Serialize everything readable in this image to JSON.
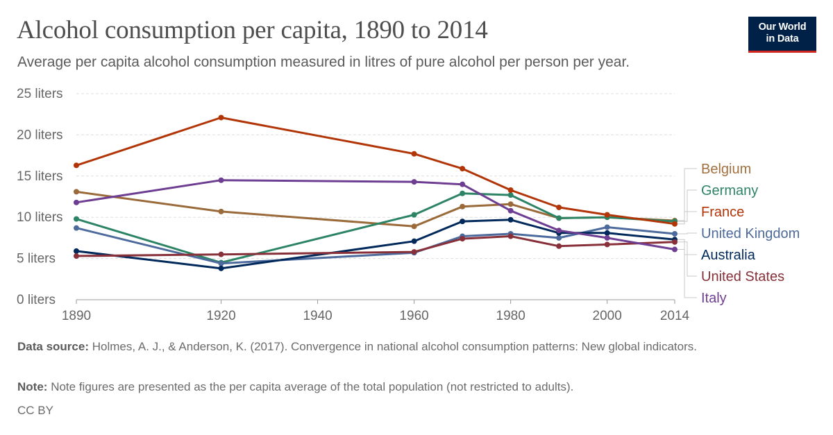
{
  "header": {
    "title": "Alcohol consumption per capita, 1890 to 2014",
    "subtitle": "Average per capita alcohol consumption measured in litres of pure alcohol per person per year.",
    "logo_line1": "Our World",
    "logo_line2": "in Data"
  },
  "footer": {
    "source_label": "Data source:",
    "source_text": "Holmes, A. J., & Anderson, K. (2017). Convergence in national alcohol consumption patterns: New global indicators.",
    "note_label": "Note:",
    "note_text": "Note figures are presented as the per capita average of the total population (not restricted to adults).",
    "license": "CC BY"
  },
  "chart_data": {
    "type": "line",
    "title": "Alcohol consumption per capita, 1890 to 2014",
    "xlabel": "",
    "ylabel": "",
    "xlim": [
      1890,
      2014
    ],
    "ylim": [
      0,
      25
    ],
    "grid": true,
    "legend_placement": "right",
    "x_ticks": [
      1890,
      1920,
      1940,
      1960,
      1980,
      2000,
      2014
    ],
    "y_ticks": [
      0,
      5,
      10,
      15,
      20,
      25
    ],
    "y_tick_labels": [
      "0 liters",
      "5 liters",
      "10 liters",
      "15 liters",
      "20 liters",
      "25 liters"
    ],
    "series": [
      {
        "name": "Belgium",
        "color": "#9a6a3a",
        "label_color": "#a2703f",
        "points": [
          [
            1890,
            13.1
          ],
          [
            1920,
            10.7
          ],
          [
            1960,
            8.9
          ],
          [
            1970,
            11.3
          ],
          [
            1980,
            11.6
          ],
          [
            1990,
            9.9
          ],
          [
            2000,
            10.0
          ],
          [
            2014,
            9.6
          ]
        ]
      },
      {
        "name": "Germany",
        "color": "#2c8465",
        "label_color": "#2c8465",
        "points": [
          [
            1890,
            9.8
          ],
          [
            1920,
            4.5
          ],
          [
            1960,
            10.3
          ],
          [
            1970,
            12.9
          ],
          [
            1980,
            12.7
          ],
          [
            1990,
            9.9
          ],
          [
            2000,
            10.0
          ],
          [
            2014,
            9.5
          ]
        ]
      },
      {
        "name": "France",
        "color": "#b13507",
        "label_color": "#b13507",
        "points": [
          [
            1890,
            16.3
          ],
          [
            1920,
            22.1
          ],
          [
            1960,
            17.7
          ],
          [
            1970,
            15.9
          ],
          [
            1980,
            13.3
          ],
          [
            1990,
            11.2
          ],
          [
            2000,
            10.3
          ],
          [
            2014,
            9.2
          ]
        ]
      },
      {
        "name": "United Kingdom",
        "color": "#4c6a9c",
        "label_color": "#4c6a9c",
        "points": [
          [
            1890,
            8.7
          ],
          [
            1920,
            4.4
          ],
          [
            1960,
            5.7
          ],
          [
            1970,
            7.7
          ],
          [
            1980,
            8.0
          ],
          [
            1990,
            7.5
          ],
          [
            2000,
            8.8
          ],
          [
            2014,
            8.0
          ]
        ]
      },
      {
        "name": "Australia",
        "color": "#00295b",
        "label_color": "#00295b",
        "points": [
          [
            1890,
            5.9
          ],
          [
            1920,
            3.8
          ],
          [
            1960,
            7.1
          ],
          [
            1970,
            9.5
          ],
          [
            1980,
            9.7
          ],
          [
            1990,
            8.1
          ],
          [
            2000,
            8.1
          ],
          [
            2014,
            7.3
          ]
        ]
      },
      {
        "name": "United States",
        "color": "#883039",
        "label_color": "#883039",
        "points": [
          [
            1890,
            5.3
          ],
          [
            1920,
            5.5
          ],
          [
            1960,
            5.8
          ],
          [
            1970,
            7.4
          ],
          [
            1980,
            7.7
          ],
          [
            1990,
            6.5
          ],
          [
            2000,
            6.7
          ],
          [
            2014,
            7.0
          ]
        ]
      },
      {
        "name": "Italy",
        "color": "#6d3e91",
        "label_color": "#6d3e91",
        "points": [
          [
            1890,
            11.8
          ],
          [
            1920,
            14.5
          ],
          [
            1960,
            14.3
          ],
          [
            1970,
            14.0
          ],
          [
            1980,
            10.8
          ],
          [
            1990,
            8.4
          ],
          [
            2000,
            7.5
          ],
          [
            2014,
            6.1
          ]
        ]
      }
    ]
  }
}
